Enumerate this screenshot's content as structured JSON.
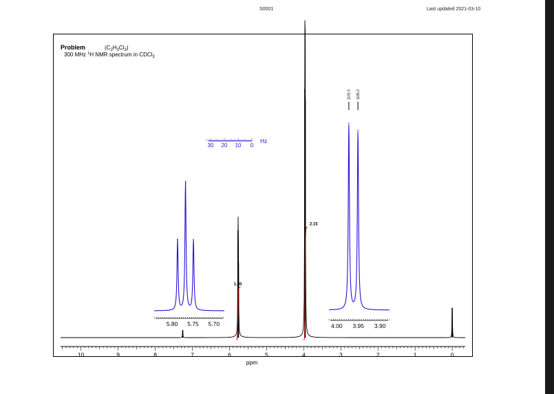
{
  "header": {
    "id": "S0001",
    "updated": "Last updated 2021-03-10"
  },
  "title": {
    "problem": "Problem",
    "formula": "(C2H3Cl3)",
    "description": "300 MHz 1H NMR spectrum in CDCl3"
  },
  "chart_data": {
    "type": "line",
    "xlabel": "ppm",
    "xlim": [
      10.55,
      -0.35
    ],
    "x_ticks": [
      "10",
      "9",
      "8",
      "7",
      "6",
      "5",
      "4",
      "3",
      "2",
      "1",
      "0"
    ],
    "series": [
      {
        "peaks": [
          {
            "ppm": 7.26,
            "height": 0.03
          },
          {
            "ppm": 5.77,
            "height": 0.43
          },
          {
            "ppm": 5.76,
            "height": 0.3
          },
          {
            "ppm": 3.97,
            "height": 1.0
          },
          {
            "ppm": 3.96,
            "height": 0.96
          },
          {
            "ppm": 0.0,
            "height": 0.12
          }
        ]
      }
    ],
    "integrals": [
      {
        "label": "1.00",
        "ppm_range": [
          5.82,
          5.7
        ],
        "value": 1.0
      },
      {
        "label": "2.15",
        "ppm_range": [
          4.0,
          3.9
        ],
        "value": 2.15
      }
    ],
    "hz_scale": {
      "ticks": [
        "30",
        "20",
        "10",
        "0"
      ],
      "unit": "Hz"
    },
    "insets": [
      {
        "name": "inset-triplet",
        "x_ticks": [
          "5.80",
          "5.75",
          "5.70"
        ],
        "peaks": [
          {
            "ppm": 5.787,
            "height": 0.55
          },
          {
            "ppm": 5.768,
            "height": 1.0
          },
          {
            "ppm": 5.749,
            "height": 0.55
          }
        ]
      },
      {
        "name": "inset-doublet",
        "x_ticks": [
          "4.00",
          "3.95",
          "3.90"
        ],
        "peak_labels": [
          "1191.5",
          "1185.2"
        ],
        "peaks": [
          {
            "ppm": 3.972,
            "height": 1.0
          },
          {
            "ppm": 3.951,
            "height": 0.96
          }
        ]
      }
    ]
  },
  "colors": {
    "spectrum": "#000000",
    "inset": "#2a10d8",
    "integral": "#d00000",
    "hz_scale": "#2a10d8"
  }
}
